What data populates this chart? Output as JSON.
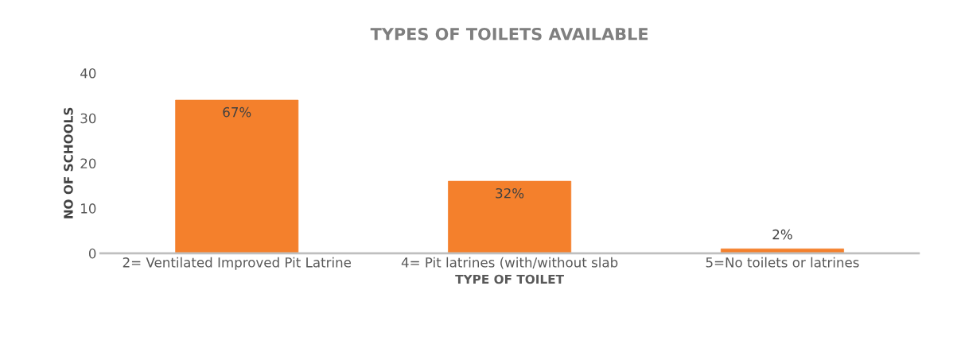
{
  "chart_data": {
    "type": "bar",
    "title": "TYPES OF TOILETS AVAILABLE",
    "xlabel": "TYPE OF TOILET",
    "ylabel": "NO OF SCHOOLS",
    "categories": [
      "2= Ventilated Improved Pit Latrine",
      "4= Pit latrines (with/without slab",
      "5=No toilets or latrines"
    ],
    "values": [
      34,
      16,
      1
    ],
    "color": "#f4802c",
    "annotations": [
      {
        "text": "67%",
        "x": "2= Ventilated Improved Pit Latrine",
        "y": 34
      },
      {
        "text": "32%",
        "x": "4= Pit latrines (with/without slab",
        "y": 16
      },
      {
        "text": "2%",
        "x": "5=No toilets or latrines",
        "y": 1
      }
    ],
    "ylim": [
      0,
      40
    ],
    "yticks": [
      0,
      10,
      20,
      30,
      40
    ],
    "grid": false,
    "legend": false
  }
}
